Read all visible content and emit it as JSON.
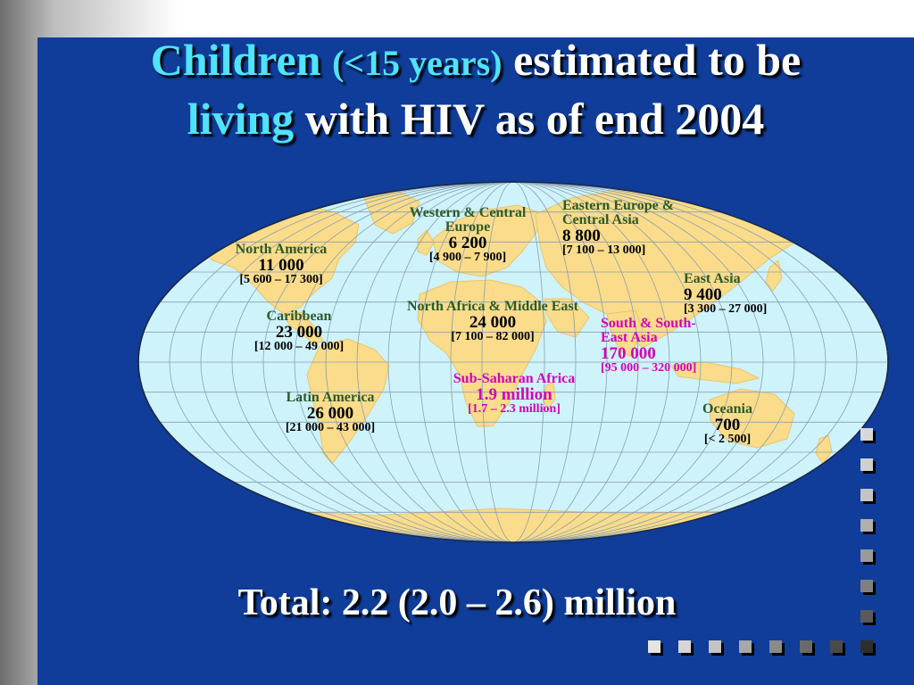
{
  "slide": {
    "title_part1": "Children",
    "title_part2": "(<15 years)",
    "title_part3": "estimated to be",
    "title_part4": "living",
    "title_part5": "with HIV as of end 2004",
    "total": "Total: 2.2 (2.0 – 2.6) million"
  },
  "regions": [
    {
      "name": "North America",
      "value": "11 000",
      "range": "[5 600 – 17 300]"
    },
    {
      "name": "Caribbean",
      "value": "23 000",
      "range": "[12 000 – 49 000]"
    },
    {
      "name": "Latin America",
      "value": "26 000",
      "range": "[21 000 – 43 000]"
    },
    {
      "name": "Western & Central Europe",
      "value": "6 200",
      "range": "[4 900 – 7 900]"
    },
    {
      "name": "North Africa & Middle East",
      "value": "24 000",
      "range": "[7 100 – 82 000]"
    },
    {
      "name": "Sub-Saharan Africa",
      "value": "1.9 million",
      "range": "[1.7 – 2.3 million]"
    },
    {
      "name": "Eastern Europe & Central Asia",
      "value": "8 800",
      "range": "[7 100 – 13 000]"
    },
    {
      "name": "East Asia",
      "value": "9 400",
      "range": "[3 300 – 27 000]"
    },
    {
      "name": "South & South-East Asia",
      "value": "170 000",
      "range": "[95 000 – 320 000]"
    },
    {
      "name": "Oceania",
      "value": "700",
      "range": "[< 2 500]"
    }
  ],
  "colors": {
    "background": "#0f3d99",
    "ocean": "#cff3fb",
    "land": "#fadc8a",
    "title_accent": "#4fe3ff",
    "highlight": "#d400b8",
    "region_name": "#2b5a2b"
  }
}
